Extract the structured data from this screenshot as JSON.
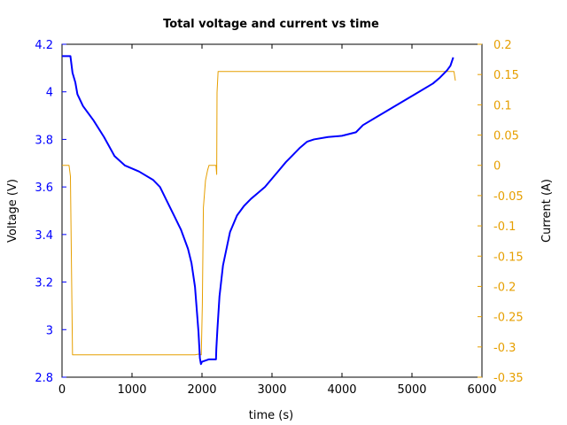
{
  "chart_data": {
    "type": "line",
    "title": "Total voltage and current vs time",
    "xlabel": "time (s)",
    "ylabel_left": "Voltage (V)",
    "ylabel_right": "Current (A)",
    "xlim": [
      0,
      6000
    ],
    "ylim_left": [
      2.8,
      4.2
    ],
    "ylim_right": [
      -0.35,
      0.2
    ],
    "x_ticks": [
      0,
      1000,
      2000,
      3000,
      4000,
      5000,
      6000
    ],
    "y_left_ticks": [
      2.8,
      3,
      3.2,
      3.4,
      3.6,
      3.8,
      4,
      4.2
    ],
    "y_right_ticks": [
      -0.35,
      -0.3,
      -0.25,
      -0.2,
      -0.15,
      -0.1,
      -0.05,
      0,
      0.05,
      0.1,
      0.15,
      0.2
    ],
    "grid": false,
    "colors": {
      "voltage": "#0000ff",
      "current": "#e69f00",
      "axis_left": "#0000ff",
      "axis_right": "#e69f00"
    },
    "series": [
      {
        "axis": "left",
        "color": "#0000ff",
        "x": [
          0,
          120,
          150,
          190,
          220,
          300,
          450,
          600,
          750,
          900,
          1100,
          1300,
          1400,
          1500,
          1600,
          1700,
          1800,
          1850,
          1900,
          1950,
          1970,
          1985,
          2000,
          2050,
          2100,
          2150,
          2200,
          2205,
          2220,
          2250,
          2300,
          2400,
          2500,
          2600,
          2700,
          2800,
          2900,
          3000,
          3100,
          3200,
          3300,
          3400,
          3500,
          3600,
          3800,
          4000,
          4200,
          4300,
          4500,
          4700,
          4900,
          5100,
          5300,
          5400,
          5500,
          5550,
          5590
        ],
        "y": [
          4.15,
          4.15,
          4.08,
          4.04,
          3.99,
          3.94,
          3.88,
          3.81,
          3.73,
          3.69,
          3.665,
          3.63,
          3.6,
          3.54,
          3.48,
          3.42,
          3.34,
          3.28,
          3.18,
          2.99,
          2.88,
          2.855,
          2.865,
          2.87,
          2.875,
          2.875,
          2.875,
          2.92,
          3.0,
          3.14,
          3.27,
          3.41,
          3.48,
          3.52,
          3.55,
          3.575,
          3.6,
          3.635,
          3.67,
          3.705,
          3.735,
          3.765,
          3.79,
          3.8,
          3.81,
          3.815,
          3.83,
          3.86,
          3.895,
          3.93,
          3.965,
          4.0,
          4.035,
          4.06,
          4.09,
          4.11,
          4.145
        ]
      },
      {
        "axis": "right",
        "color": "#e69f00",
        "x": [
          0,
          100,
          120,
          150,
          1900,
          1950,
          1990,
          2005,
          2020,
          2050,
          2080,
          2100,
          2200,
          2210,
          2215,
          2230,
          5600,
          5620
        ],
        "y": [
          0,
          0,
          -0.018,
          -0.313,
          -0.313,
          -0.312,
          -0.313,
          -0.23,
          -0.07,
          -0.025,
          -0.008,
          0,
          0,
          -0.015,
          0.12,
          0.155,
          0.155,
          0.14
        ]
      }
    ]
  }
}
